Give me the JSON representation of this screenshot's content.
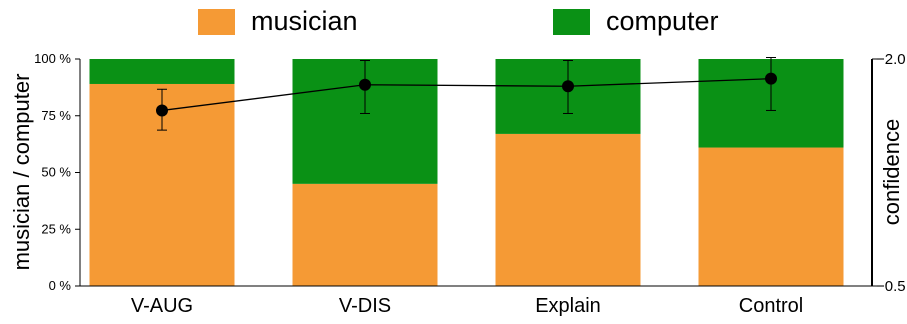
{
  "chart_data": {
    "type": "bar",
    "stacked": true,
    "categories": [
      "V-AUG",
      "V-DIS",
      "Explain",
      "Control"
    ],
    "series": [
      {
        "name": "musician",
        "color": "#F59A35",
        "values": [
          89,
          45,
          67,
          61
        ]
      },
      {
        "name": "computer",
        "color": "#0A9115",
        "values": [
          11,
          55,
          33,
          39
        ]
      }
    ],
    "left_axis": {
      "label": "musician / computer",
      "ticks": [
        "0 %",
        "25 %",
        "50 %",
        "75 %",
        "100 %"
      ],
      "tick_values": [
        0,
        25,
        50,
        75,
        100
      ],
      "range": [
        0,
        100
      ]
    },
    "right_axis": {
      "label": "confidence",
      "ticks": [
        "−2.0",
        "−0.5"
      ],
      "tick_values": [
        -2.0,
        -0.5
      ],
      "range": [
        -2.0,
        -0.5
      ],
      "inverted": true
    },
    "confidence_line": {
      "values": [
        -1.66,
        -1.83,
        -1.82,
        -1.87
      ],
      "err_low": [
        -1.53,
        -1.64,
        -1.64,
        -1.66
      ],
      "err_high": [
        -1.8,
        -1.99,
        -1.99,
        -2.01
      ]
    },
    "legend_position": "top",
    "grid": false
  }
}
